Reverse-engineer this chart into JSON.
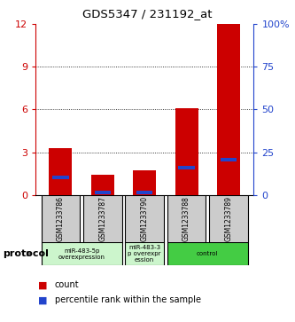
{
  "title": "GDS5347 / 231192_at",
  "samples": [
    "GSM1233786",
    "GSM1233787",
    "GSM1233790",
    "GSM1233788",
    "GSM1233789"
  ],
  "red_values": [
    3.3,
    1.4,
    1.7,
    6.1,
    12.0
  ],
  "blue_values": [
    1.2,
    0.15,
    0.15,
    1.9,
    2.5
  ],
  "ylim_left": [
    0,
    12
  ],
  "ylim_right": [
    0,
    100
  ],
  "yticks_left": [
    0,
    3,
    6,
    9,
    12
  ],
  "yticks_right": [
    0,
    25,
    50,
    75,
    100
  ],
  "ytick_labels_right": [
    "0",
    "25",
    "50",
    "75",
    "100%"
  ],
  "grid_vals": [
    3,
    6,
    9
  ],
  "bar_width": 0.55,
  "red_color": "#cc0000",
  "blue_color": "#2244cc",
  "left_tick_color": "#cc0000",
  "right_tick_color": "#2244cc",
  "bg_color": "#ffffff",
  "label_count": "count",
  "label_pct": "percentile rank within the sample",
  "protocol_label": "protocol",
  "proto_groups": [
    {
      "start": 0,
      "end": 1,
      "label": "miR-483-5p\noverexpression",
      "color": "#ccf5cc"
    },
    {
      "start": 2,
      "end": 2,
      "label": "miR-483-3\np overexpr\nession",
      "color": "#ccf5cc"
    },
    {
      "start": 3,
      "end": 4,
      "label": "control",
      "color": "#44cc44"
    }
  ]
}
